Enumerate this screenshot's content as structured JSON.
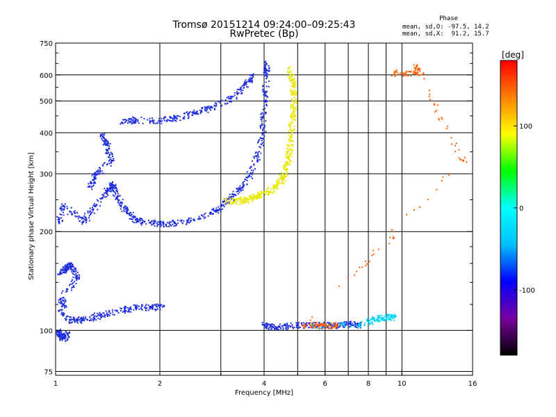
{
  "chart_data": {
    "type": "scatter",
    "title": "Tromsø 20151214 09:24:00–09:25:43",
    "subtitle": "RwPretec (Bp)",
    "xlabel": "Frequency [MHz]",
    "ylabel": "Stationary phase Virtual Height [km]",
    "x_scale": "log",
    "y_scale": "log",
    "xlim": [
      1,
      16
    ],
    "ylim": [
      73,
      750
    ],
    "x_ticks": [
      1,
      2,
      4,
      6,
      8,
      10,
      16
    ],
    "x_tick_labels": [
      "1",
      "2",
      "4",
      "6",
      "8",
      "10",
      "16"
    ],
    "x_minor_ticks": [
      3,
      5,
      7,
      9
    ],
    "y_ticks": [
      75,
      100,
      200,
      300,
      400,
      500,
      600,
      750
    ],
    "y_tick_labels": [
      "75",
      "100",
      "200",
      "300",
      "400",
      "500",
      "600",
      "750"
    ],
    "y_minor_ticks": [
      120,
      140,
      160,
      180,
      250,
      350,
      450,
      550,
      650,
      700
    ],
    "grid": true,
    "phase_stats": {
      "title": "Phase",
      "line_o": "mean, sd,O: -97.5, 14.2",
      "line_x": "mean, sd,X:  91.2, 15.7"
    },
    "colorbar": {
      "unit": "[deg]",
      "range": [
        -180,
        180
      ],
      "ticks": [
        100,
        0,
        -100
      ],
      "tick_labels": [
        "100",
        "0",
        "-100"
      ],
      "colors": [
        "#000000",
        "#7a00a0",
        "#0000ff",
        "#00bfff",
        "#00ffff",
        "#00ff00",
        "#ffff00",
        "#ff8000",
        "#ff0000"
      ]
    },
    "series": [
      {
        "color": "#1f2de0",
        "phase": -100,
        "trace_f_low": [
          [
            1.02,
            215
          ],
          [
            1.05,
            240
          ],
          [
            1.2,
            215
          ],
          [
            1.3,
            240
          ],
          [
            1.4,
            265
          ],
          [
            1.45,
            280
          ],
          [
            1.5,
            255
          ],
          [
            1.6,
            230
          ],
          [
            1.7,
            218
          ],
          [
            1.8,
            215
          ],
          [
            2.0,
            212
          ],
          [
            2.2,
            213
          ],
          [
            2.5,
            218
          ],
          [
            2.8,
            228
          ],
          [
            3.0,
            240
          ],
          [
            3.2,
            255
          ],
          [
            3.4,
            270
          ],
          [
            3.6,
            295
          ],
          [
            3.8,
            340
          ],
          [
            3.95,
            400
          ],
          [
            4.0,
            500
          ],
          [
            4.05,
            600
          ],
          [
            4.05,
            650
          ]
        ],
        "trace_upper": [
          [
            1.55,
            430
          ],
          [
            1.7,
            440
          ],
          [
            2.0,
            435
          ],
          [
            2.2,
            445
          ],
          [
            2.5,
            460
          ],
          [
            2.8,
            480
          ],
          [
            3.2,
            510
          ],
          [
            3.5,
            560
          ],
          [
            3.7,
            600
          ]
        ],
        "trace_low": [
          [
            1.02,
            115
          ],
          [
            1.1,
            108
          ],
          [
            1.2,
            108
          ],
          [
            1.35,
            112
          ],
          [
            1.5,
            115
          ],
          [
            1.7,
            118
          ],
          [
            1.9,
            118
          ],
          [
            2.05,
            119
          ]
        ],
        "trace_e": [
          [
            1.03,
            150
          ],
          [
            1.07,
            155
          ],
          [
            1.1,
            160
          ],
          [
            1.15,
            145
          ],
          [
            1.03,
            125
          ],
          [
            1.05,
            120
          ]
        ],
        "trace_es": [
          [
            4.0,
            104
          ],
          [
            4.2,
            103
          ],
          [
            4.4,
            103
          ],
          [
            5.0,
            104
          ],
          [
            5.5,
            104
          ],
          [
            6.0,
            104
          ],
          [
            6.5,
            104
          ],
          [
            7.0,
            105
          ],
          [
            7.5,
            104
          ]
        ],
        "trace_near_fmin": [
          [
            1.01,
            100
          ],
          [
            1.03,
            97
          ],
          [
            1.05,
            95
          ],
          [
            1.08,
            98
          ]
        ],
        "trace_sparse_high": [
          [
            1.35,
            395
          ],
          [
            1.4,
            370
          ],
          [
            1.45,
            330
          ],
          [
            1.3,
            300
          ],
          [
            1.25,
            275
          ]
        ]
      },
      {
        "color": "#e8e800",
        "phase": 95,
        "trace_x": [
          [
            3.1,
            250
          ],
          [
            3.3,
            248
          ],
          [
            3.5,
            250
          ],
          [
            3.7,
            255
          ],
          [
            3.9,
            260
          ],
          [
            4.1,
            265
          ],
          [
            4.3,
            275
          ],
          [
            4.5,
            290
          ],
          [
            4.6,
            310
          ],
          [
            4.7,
            340
          ],
          [
            4.75,
            380
          ],
          [
            4.8,
            430
          ],
          [
            4.85,
            480
          ],
          [
            4.85,
            530
          ],
          [
            4.8,
            580
          ],
          [
            4.7,
            630
          ]
        ]
      },
      {
        "color": "#00d5ff",
        "phase": -30,
        "trace_es_cyan": [
          [
            5.5,
            104
          ],
          [
            7.5,
            104
          ],
          [
            8.5,
            109
          ],
          [
            9.0,
            110
          ],
          [
            9.5,
            110
          ]
        ]
      },
      {
        "color": "#ff6000",
        "phase": 140,
        "trace_scattered": [
          [
            9.5,
            610
          ],
          [
            11.0,
            610
          ],
          [
            11.0,
            640
          ],
          [
            15.0,
            330
          ],
          [
            5.2,
            104
          ],
          [
            5.8,
            104
          ],
          [
            6.5,
            104
          ]
        ]
      }
    ]
  }
}
